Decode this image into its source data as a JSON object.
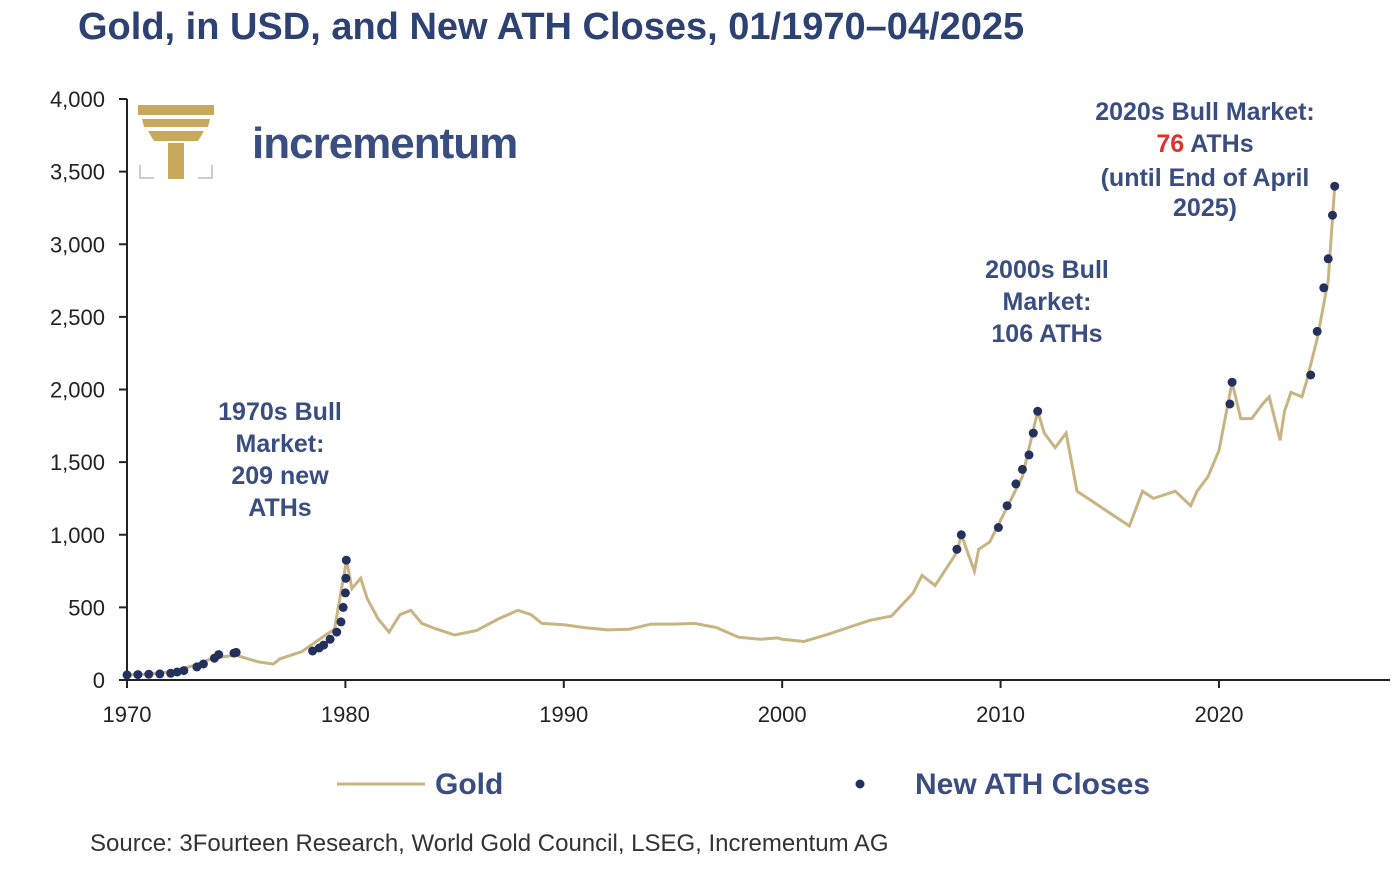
{
  "title": "Gold, in USD, and New ATH Closes, 01/1970–04/2025",
  "source": "Source: 3Fourteen Research, World Gold Council, LSEG, Incrementum AG",
  "logo": {
    "text": "incrementum",
    "icon": "tree-icon"
  },
  "colors": {
    "gold": "#c8b382",
    "ath": "#24315c",
    "text": "#3a4d80",
    "red": "#e0302a"
  },
  "chart_data": {
    "type": "line",
    "title": "Gold, in USD, and New ATH Closes, 01/1970–04/2025",
    "xlim": [
      1970,
      2026
    ],
    "ylim": [
      0,
      4000
    ],
    "x_ticks": [
      "1970",
      "1980",
      "1990",
      "2000",
      "2010",
      "2020"
    ],
    "y_ticks": [
      "0",
      "500",
      "1,000",
      "1,500",
      "2,000",
      "2,500",
      "3,000",
      "3,500",
      "4,000"
    ],
    "grid": false,
    "legend": [
      "Gold",
      "New ATH Closes"
    ],
    "legend_position": "bottom",
    "series": [
      {
        "name": "Gold",
        "x": [
          1970,
          1971,
          1972,
          1973,
          1974,
          1975,
          1976,
          1976.7,
          1977,
          1978,
          1979,
          1979.5,
          1980.05,
          1980.3,
          1980.7,
          1981,
          1981.5,
          1982,
          1982.5,
          1983,
          1983.5,
          1984,
          1985,
          1986,
          1987,
          1987.9,
          1988.5,
          1989,
          1990,
          1991,
          1992,
          1993,
          1994,
          1995,
          1996,
          1997,
          1998,
          1999,
          1999.8,
          2000,
          2001,
          2002,
          2003,
          2004,
          2005,
          2006,
          2006.4,
          2007,
          2008,
          2008.2,
          2008.8,
          2009,
          2009.5,
          2010,
          2010.5,
          2011,
          2011.7,
          2012,
          2012.5,
          2013,
          2013.5,
          2014,
          2015,
          2015.9,
          2016.5,
          2017,
          2018,
          2018.7,
          2019,
          2019.5,
          2020,
          2020.6,
          2021,
          2021.5,
          2022,
          2022.3,
          2022.8,
          2023,
          2023.3,
          2023.8,
          2024,
          2024.5,
          2025,
          2025.3
        ],
        "y": [
          35,
          40,
          58,
          97,
          154,
          170,
          125,
          110,
          145,
          195,
          300,
          350,
          825,
          630,
          700,
          560,
          420,
          330,
          450,
          480,
          390,
          360,
          310,
          340,
          420,
          480,
          450,
          390,
          380,
          360,
          345,
          350,
          385,
          385,
          390,
          360,
          295,
          280,
          290,
          280,
          265,
          310,
          360,
          410,
          440,
          600,
          720,
          650,
          880,
          1000,
          750,
          900,
          950,
          1100,
          1250,
          1400,
          1850,
          1700,
          1600,
          1700,
          1300,
          1250,
          1150,
          1060,
          1300,
          1250,
          1300,
          1200,
          1300,
          1400,
          1580,
          2050,
          1800,
          1800,
          1900,
          1950,
          1650,
          1850,
          1980,
          1950,
          2050,
          2350,
          2750,
          3400
        ]
      },
      {
        "name": "New ATH Closes",
        "x": [
          1970,
          1970.5,
          1971,
          1971.5,
          1972,
          1972.3,
          1972.6,
          1973.2,
          1973.5,
          1974,
          1974.2,
          1974.9,
          1975,
          1978.5,
          1978.8,
          1979,
          1979.3,
          1979.6,
          1979.8,
          1979.9,
          1980,
          1980.02,
          1980.04,
          2008,
          2008.2,
          2009.9,
          2010.3,
          2010.7,
          2011,
          2011.3,
          2011.5,
          2011.7,
          2020.5,
          2020.6,
          2024.2,
          2024.5,
          2024.8,
          2025,
          2025.2,
          2025.3
        ],
        "y": [
          35,
          37,
          40,
          42,
          46,
          55,
          65,
          90,
          110,
          150,
          175,
          185,
          190,
          200,
          220,
          240,
          280,
          330,
          400,
          500,
          600,
          700,
          825,
          900,
          1000,
          1050,
          1200,
          1350,
          1450,
          1550,
          1700,
          1850,
          1900,
          2050,
          2100,
          2400,
          2700,
          2900,
          3200,
          3400
        ]
      }
    ],
    "annotations": [
      {
        "lines": [
          "1970s Bull",
          "Market:",
          "209 new",
          "ATHs"
        ]
      },
      {
        "lines": [
          "2000s Bull",
          "Market:",
          "106 ATHs"
        ]
      },
      {
        "line1": "2020s Bull Market:",
        "line2_value": "76",
        "line2_rest": " ATHs",
        "line3": "(until End of April",
        "line4": "2025)"
      }
    ]
  }
}
